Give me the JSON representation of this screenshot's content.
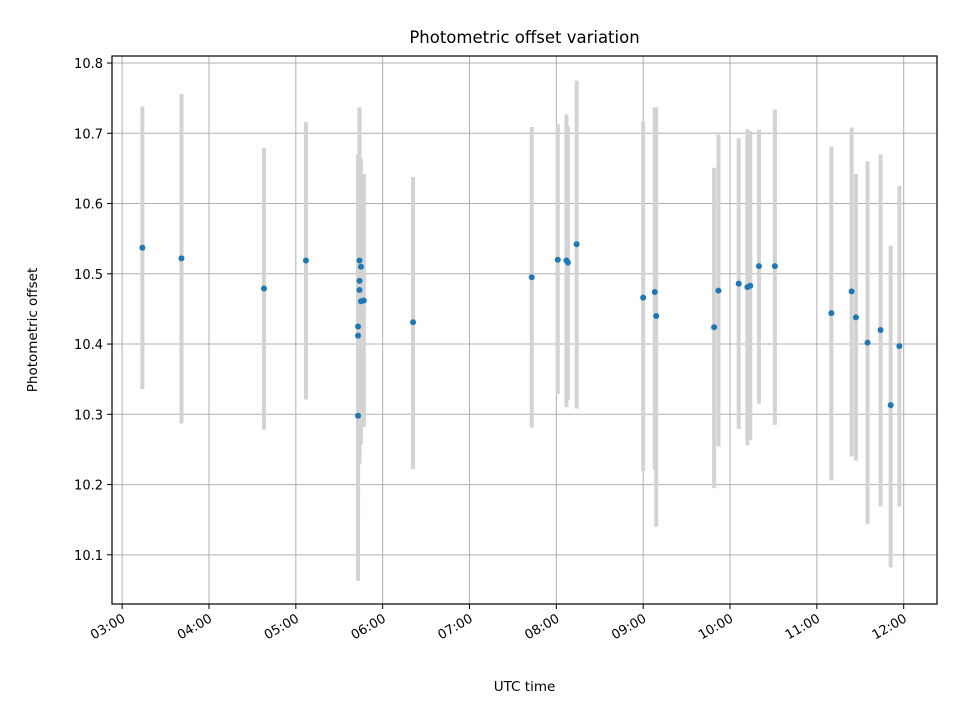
{
  "chart_data": {
    "type": "scatter",
    "title": "Photometric offset variation",
    "xlabel": "UTC time",
    "ylabel": "Photometric offset",
    "x_axis_type": "time",
    "xlim": [
      "02:53",
      "12:23"
    ],
    "ylim": [
      10.03,
      10.81
    ],
    "x_ticks": [
      "03:00",
      "04:00",
      "05:00",
      "06:00",
      "07:00",
      "08:00",
      "09:00",
      "10:00",
      "11:00",
      "12:00"
    ],
    "y_ticks": [
      10.1,
      10.2,
      10.3,
      10.4,
      10.5,
      10.6,
      10.7,
      10.8
    ],
    "y_tick_labels": [
      "10.1",
      "10.2",
      "10.3",
      "10.4",
      "10.5",
      "10.6",
      "10.7",
      "10.8"
    ],
    "grid": true,
    "marker_color": "#1f77b4",
    "errorbar_color": "#d3d3d3",
    "points": [
      {
        "t": "03:14",
        "y": 10.537,
        "lo": 10.336,
        "hi": 10.738
      },
      {
        "t": "03:41",
        "y": 10.522,
        "lo": 10.287,
        "hi": 10.756
      },
      {
        "t": "04:38",
        "y": 10.479,
        "lo": 10.278,
        "hi": 10.679
      },
      {
        "t": "05:07",
        "y": 10.519,
        "lo": 10.321,
        "hi": 10.716
      },
      {
        "t": "05:43",
        "y": 10.298,
        "lo": 10.063,
        "hi": 10.533
      },
      {
        "t": "05:43",
        "y": 10.412,
        "lo": 10.18,
        "hi": 10.66
      },
      {
        "t": "05:43",
        "y": 10.425,
        "lo": 10.15,
        "hi": 10.67
      },
      {
        "t": "05:44",
        "y": 10.477,
        "lo": 10.23,
        "hi": 10.712
      },
      {
        "t": "05:44",
        "y": 10.49,
        "lo": 10.26,
        "hi": 10.737
      },
      {
        "t": "05:44",
        "y": 10.519,
        "lo": 10.3,
        "hi": 10.7
      },
      {
        "t": "05:45",
        "y": 10.51,
        "lo": 10.31,
        "hi": 10.66
      },
      {
        "t": "05:45",
        "y": 10.461,
        "lo": 10.257,
        "hi": 10.664
      },
      {
        "t": "05:47",
        "y": 10.462,
        "lo": 10.282,
        "hi": 10.642
      },
      {
        "t": "06:21",
        "y": 10.431,
        "lo": 10.222,
        "hi": 10.638
      },
      {
        "t": "07:43",
        "y": 10.495,
        "lo": 10.281,
        "hi": 10.709
      },
      {
        "t": "08:01",
        "y": 10.52,
        "lo": 10.329,
        "hi": 10.713
      },
      {
        "t": "08:07",
        "y": 10.519,
        "lo": 10.31,
        "hi": 10.727
      },
      {
        "t": "08:08",
        "y": 10.516,
        "lo": 10.32,
        "hi": 10.71
      },
      {
        "t": "08:14",
        "y": 10.542,
        "lo": 10.308,
        "hi": 10.775
      },
      {
        "t": "09:00",
        "y": 10.466,
        "lo": 10.219,
        "hi": 10.717
      },
      {
        "t": "09:08",
        "y": 10.474,
        "lo": 10.221,
        "hi": 10.737
      },
      {
        "t": "09:09",
        "y": 10.44,
        "lo": 10.14,
        "hi": 10.737
      },
      {
        "t": "09:49",
        "y": 10.424,
        "lo": 10.195,
        "hi": 10.651
      },
      {
        "t": "09:52",
        "y": 10.476,
        "lo": 10.254,
        "hi": 10.698
      },
      {
        "t": "10:06",
        "y": 10.486,
        "lo": 10.279,
        "hi": 10.693
      },
      {
        "t": "10:12",
        "y": 10.481,
        "lo": 10.256,
        "hi": 10.706
      },
      {
        "t": "10:14",
        "y": 10.483,
        "lo": 10.263,
        "hi": 10.703
      },
      {
        "t": "10:20",
        "y": 10.511,
        "lo": 10.315,
        "hi": 10.705
      },
      {
        "t": "10:31",
        "y": 10.511,
        "lo": 10.285,
        "hi": 10.734
      },
      {
        "t": "11:10",
        "y": 10.444,
        "lo": 10.206,
        "hi": 10.681
      },
      {
        "t": "11:24",
        "y": 10.475,
        "lo": 10.24,
        "hi": 10.708
      },
      {
        "t": "11:27",
        "y": 10.438,
        "lo": 10.234,
        "hi": 10.642
      },
      {
        "t": "11:35",
        "y": 10.402,
        "lo": 10.144,
        "hi": 10.66
      },
      {
        "t": "11:44",
        "y": 10.42,
        "lo": 10.169,
        "hi": 10.67
      },
      {
        "t": "11:51",
        "y": 10.313,
        "lo": 10.082,
        "hi": 10.54
      },
      {
        "t": "11:57",
        "y": 10.397,
        "lo": 10.169,
        "hi": 10.625
      }
    ]
  }
}
